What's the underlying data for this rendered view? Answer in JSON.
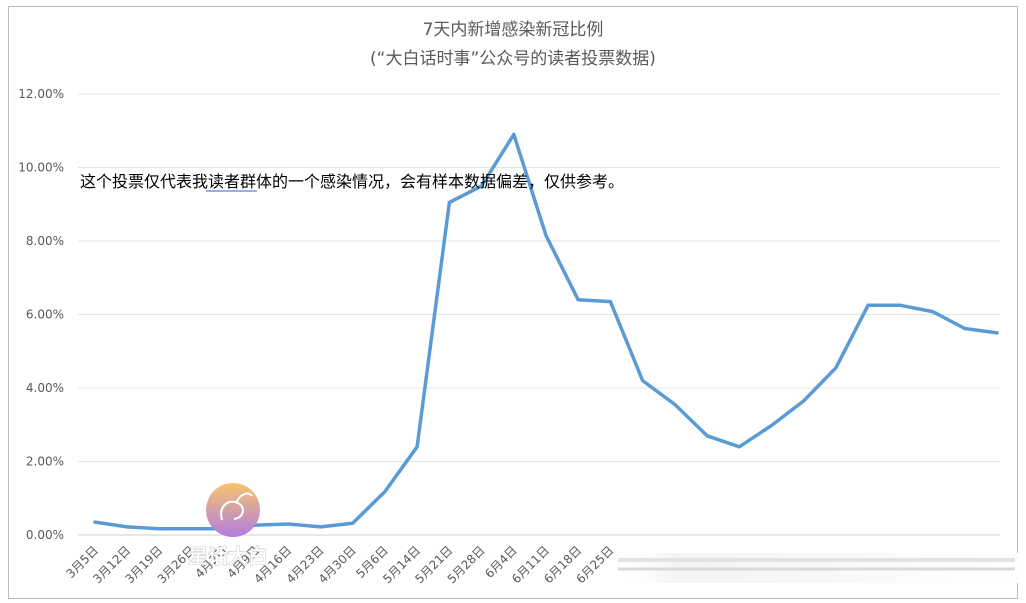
{
  "chart_data": {
    "type": "line",
    "title": "7天内新增感染新冠比例",
    "subtitle": "(“大白话时事”公众号的读者投票数据)",
    "annotation": "这个投票仅代表我读者群体的一个感染情况，会有样本数据偏差，仅供参考。",
    "ylim": [
      0,
      12
    ],
    "y_ticks": [
      "0.00%",
      "2.00%",
      "4.00%",
      "6.00%",
      "8.00%",
      "10.00%",
      "12.00%"
    ],
    "x_tick_labels": [
      "3月5日",
      "3月12日",
      "3月19日",
      "3月26日",
      "4月2日",
      "4月9日",
      "4月16日",
      "4月23日",
      "4月30日",
      "5月6日",
      "5月14日",
      "5月21日",
      "5月28日",
      "6月4日",
      "6月11日",
      "6月18日",
      "6月25日"
    ],
    "grid": true,
    "line_color": "#5b9bd5",
    "series": [
      {
        "values": [
          0.35,
          0.22,
          0.17,
          0.17,
          0.17,
          0.27,
          0.3,
          0.22,
          0.32,
          1.18,
          2.4,
          9.05,
          9.5,
          10.9,
          8.15,
          6.4,
          6.35,
          4.2,
          3.55,
          2.7,
          2.4,
          2.98,
          3.65,
          4.55,
          6.25,
          6.25,
          6.08,
          5.62,
          5.5
        ]
      }
    ]
  },
  "watermark": {
    "text": "星话大白",
    "color_top": "#f7c46c",
    "color_bottom": "#b07de0"
  }
}
